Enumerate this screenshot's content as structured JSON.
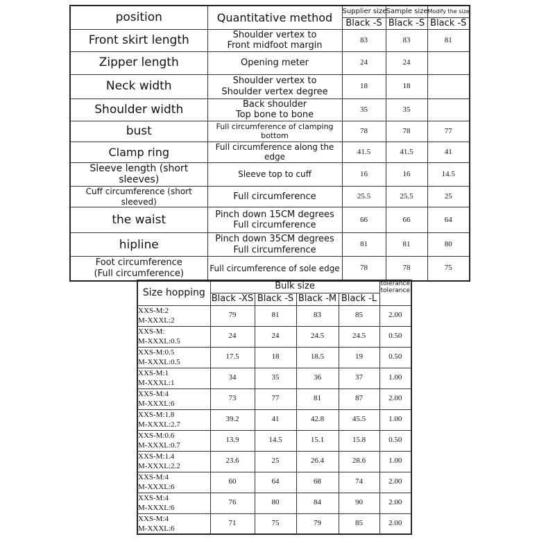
{
  "table1": {
    "header": {
      "position": "position",
      "method": "Quantitative method",
      "size_columns": [
        "Supplier size",
        "Sample size",
        "Modify the size"
      ],
      "size_labels": [
        "Black -S",
        "Black -S",
        "Black -S"
      ]
    },
    "rows": [
      [
        "Front skirt length",
        "Shoulder vertex to\nFront midfoot margin",
        "83",
        "83",
        "81"
      ],
      [
        "Zipper length",
        "Opening meter",
        "24",
        "24",
        null
      ],
      [
        "Neck width",
        "Shoulder vertex to\nShoulder vertex degree",
        "18",
        "18",
        null
      ],
      [
        "Shoulder width",
        "Back shoulder\nTop bone to bone",
        "35",
        "35",
        null
      ],
      [
        "bust",
        "Full circumference of clamping bottom",
        "78",
        "78",
        "77"
      ],
      [
        "Clamp ring",
        "Full circumference along the edge",
        "41.5",
        "41.5",
        "41"
      ],
      [
        "Sleeve length (short sleeves)",
        "Sleeve top to cuff",
        "16",
        "16",
        "14.5"
      ],
      [
        "Cuff circumference (short sleeved)",
        "Full circumference",
        "25.5",
        "25.5",
        "25"
      ],
      [
        "the waist",
        "Pinch down 15CM degrees\nFull circumference",
        "66",
        "66",
        "64"
      ],
      [
        "hipline",
        "Pinch down 35CM degrees\nFull circumference",
        "81",
        "81",
        "80"
      ],
      [
        "Foot circumference\n(Full circumference)",
        "Full circumference of sole edge",
        "78",
        "78",
        "75"
      ]
    ]
  },
  "table2": {
    "header": {
      "size_hopping": "Size hopping",
      "bulk_size": "Bulk size",
      "tolerance": "tolerance\ntolerance",
      "size_labels": [
        "Black -XS",
        "Black -S",
        "Black -M",
        "Black -L"
      ]
    },
    "rows": [
      [
        "XXS-M:2\nM-XXXL:2",
        "79",
        "81",
        "83",
        "85",
        "2.00"
      ],
      [
        "XXS-M:\nM-XXXL:0.5",
        "24",
        "24",
        "24.5",
        "24.5",
        "0.50"
      ],
      [
        "XXS-M:0.5\nM-XXXL:0.5",
        "17.5",
        "18",
        "18.5",
        "19",
        "0.50"
      ],
      [
        "XXS-M:1\nM-XXXL:1",
        "34",
        "35",
        "36",
        "37",
        "1.00"
      ],
      [
        "XXS-M:4\nM-XXXL:6",
        "73",
        "77",
        "81",
        "87",
        "2.00"
      ],
      [
        "XXS-M:1.8\nM-XXXL:2.7",
        "39.2",
        "41",
        "42.8",
        "45.5",
        "1.00"
      ],
      [
        "XXS-M:0.6\nM-XXXL:0.7",
        "13.9",
        "14.5",
        "15.1",
        "15.8",
        "0.50"
      ],
      [
        "XXS-M:1.4\nM-XXXL:2.2",
        "23.6",
        "25",
        "26.4",
        "28.6",
        "1.00"
      ],
      [
        "XXS-M:4\nM-XXXL:6",
        "60",
        "64",
        "68",
        "74",
        "2.00"
      ],
      [
        "XXS-M:4\nM-XXXL:6",
        "76",
        "80",
        "84",
        "90",
        "2.00"
      ],
      [
        "XXS-M:4\nM-XXXL:6",
        "71",
        "75",
        "79",
        "85",
        "2.00"
      ]
    ]
  }
}
